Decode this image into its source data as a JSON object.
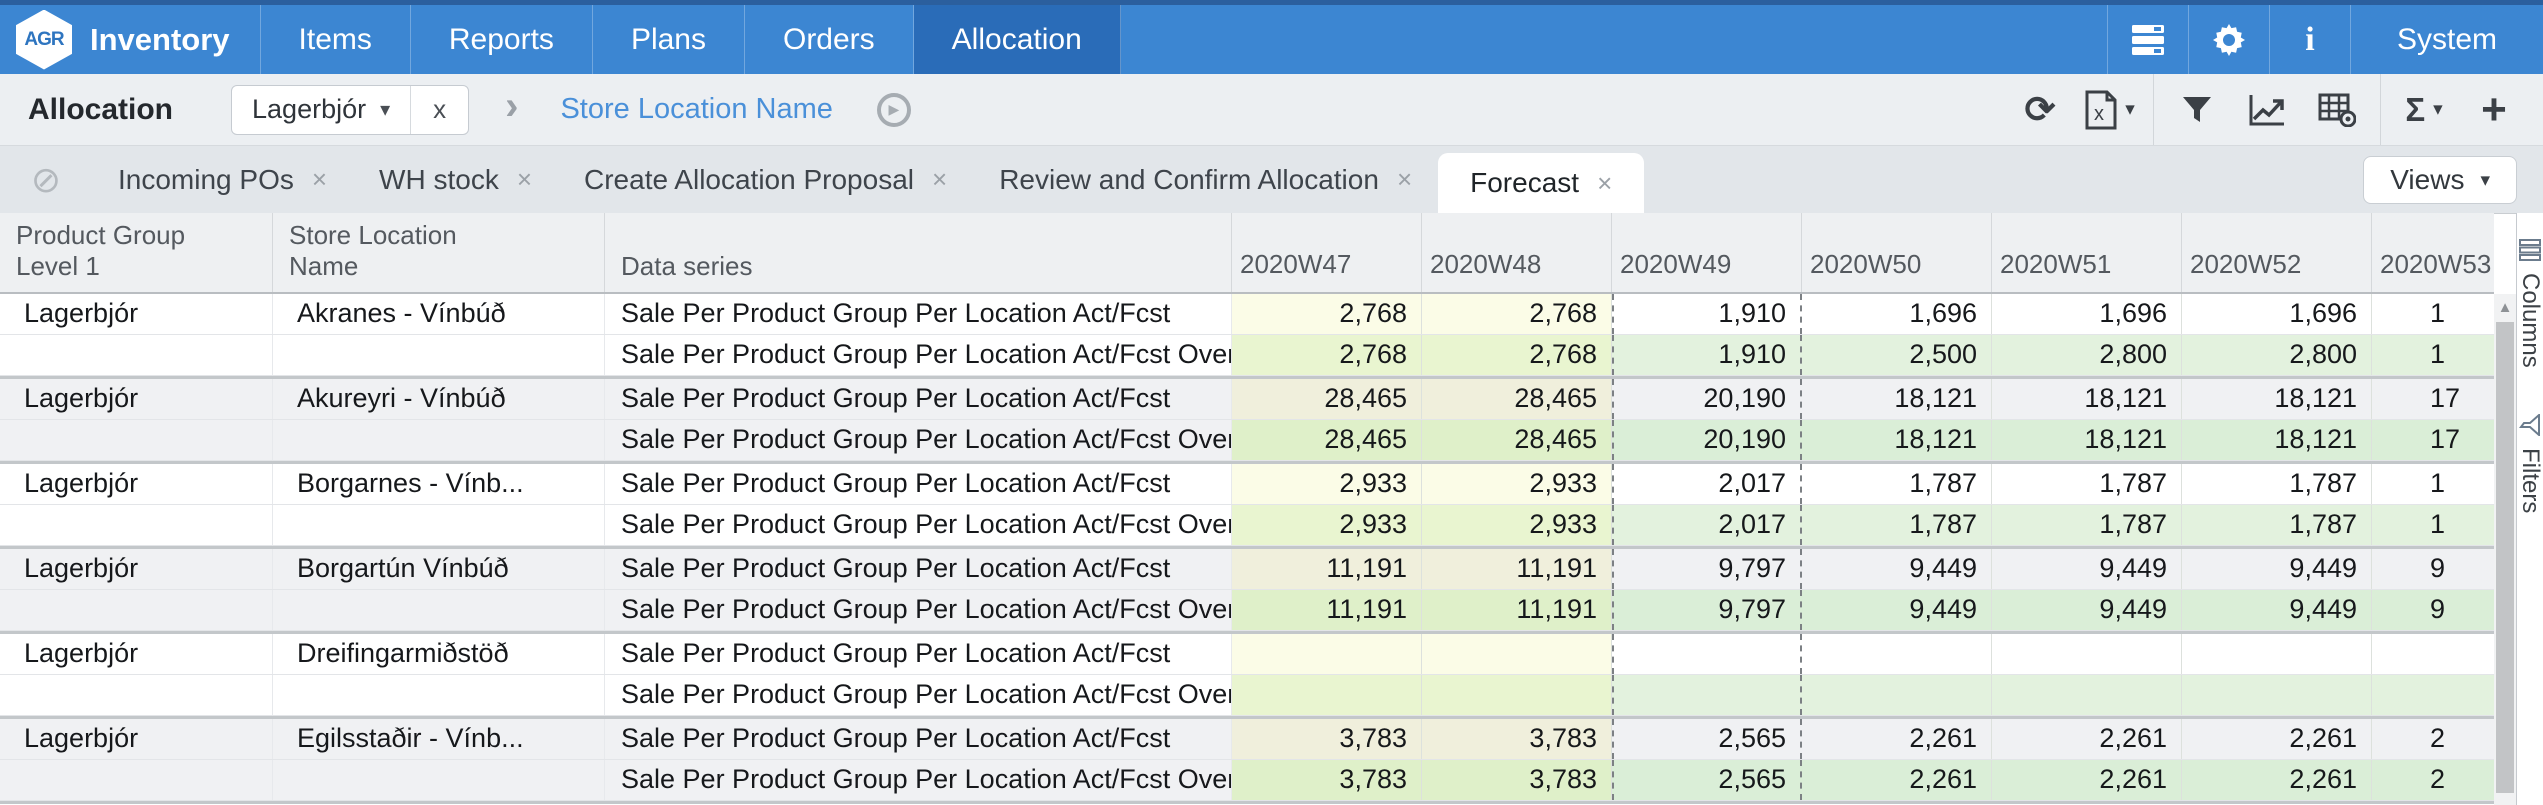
{
  "nav": {
    "logo_text": "AGR",
    "brand": "Inventory",
    "items": [
      {
        "label": "Items",
        "active": false
      },
      {
        "label": "Reports",
        "active": false
      },
      {
        "label": "Plans",
        "active": false
      },
      {
        "label": "Orders",
        "active": false
      },
      {
        "label": "Allocation",
        "active": true
      }
    ],
    "system_label": "System",
    "icons": [
      "database-icon",
      "gear-icon",
      "info-icon"
    ]
  },
  "toolbar": {
    "title": "Allocation",
    "filter_chip": {
      "label": "Lagerbjór",
      "caret": "▾",
      "close": "x"
    },
    "breadcrumb_separator": "›",
    "breadcrumb": "Store Location Name",
    "play_glyph": "▶",
    "refresh_glyph": "⟳",
    "sigma_glyph": "Σ",
    "plus_glyph": "+",
    "caret_glyph": "▾",
    "icons": [
      "refresh-icon",
      "excel-export-icon",
      "filter-icon",
      "chart-icon",
      "table-settings-icon",
      "sum-icon",
      "add-icon"
    ]
  },
  "tabs": {
    "block_glyph": "⊘",
    "close_glyph": "×",
    "items": [
      {
        "label": "Incoming POs",
        "active": false
      },
      {
        "label": "WH stock",
        "active": false
      },
      {
        "label": "Create Allocation Proposal",
        "active": false
      },
      {
        "label": "Review and Confirm Allocation",
        "active": false
      },
      {
        "label": "Forecast",
        "active": true
      }
    ],
    "views_label": "Views",
    "views_caret": "▾"
  },
  "side_rail": {
    "columns_label": "Columns",
    "filters_label": "Filters",
    "icons": [
      "columns-icon",
      "filter-icon"
    ]
  },
  "scrollbar": {
    "up_arrow": "▲"
  },
  "colors": {
    "nav_blue": "#3c86d2",
    "nav_active_blue": "#2a6cb8",
    "breadcrumb_blue": "#4a90d9",
    "actual_yellow": "#fbfce7",
    "overwrite_past_green": "#e9f5d0",
    "overwrite_future_green": "#e3f2de",
    "alt_row_gray": "#f0f1f3"
  },
  "table": {
    "headers": {
      "product": "Product Group Level 1",
      "location": "Store Location Name",
      "series": "Data series"
    },
    "week_columns": [
      "2020W47",
      "2020W48",
      "2020W49",
      "2020W50",
      "2020W51",
      "2020W52",
      "2020W53"
    ],
    "current_week_index": 2,
    "series_names": {
      "actual": "Sale Per Product Group Per Location Act/Fcst",
      "overwrite": "Sale Per Product Group Per Location Act/Fcst Overwrite"
    },
    "groups": [
      {
        "product": "Lagerbjór",
        "location": "Akranes - Vínbúð",
        "rows": [
          {
            "series": "Sale Per Product Group Per Location Act/Fcst",
            "values": [
              "2,768",
              "2,768",
              "1,910",
              "1,696",
              "1,696",
              "1,696",
              "1"
            ]
          },
          {
            "series": "Sale Per Product Group Per Location Act/Fcst Overwrite",
            "values": [
              "2,768",
              "2,768",
              "1,910",
              "2,500",
              "2,800",
              "2,800",
              "1"
            ]
          }
        ]
      },
      {
        "product": "Lagerbjór",
        "location": "Akureyri - Vínbúð",
        "rows": [
          {
            "series": "Sale Per Product Group Per Location Act/Fcst",
            "values": [
              "28,465",
              "28,465",
              "20,190",
              "18,121",
              "18,121",
              "18,121",
              "17"
            ]
          },
          {
            "series": "Sale Per Product Group Per Location Act/Fcst Overwrite",
            "values": [
              "28,465",
              "28,465",
              "20,190",
              "18,121",
              "18,121",
              "18,121",
              "17"
            ]
          }
        ]
      },
      {
        "product": "Lagerbjór",
        "location": "Borgarnes - Vínb...",
        "rows": [
          {
            "series": "Sale Per Product Group Per Location Act/Fcst",
            "values": [
              "2,933",
              "2,933",
              "2,017",
              "1,787",
              "1,787",
              "1,787",
              "1"
            ]
          },
          {
            "series": "Sale Per Product Group Per Location Act/Fcst Overwrite",
            "values": [
              "2,933",
              "2,933",
              "2,017",
              "1,787",
              "1,787",
              "1,787",
              "1"
            ]
          }
        ]
      },
      {
        "product": "Lagerbjór",
        "location": "Borgartún Vínbúð",
        "rows": [
          {
            "series": "Sale Per Product Group Per Location Act/Fcst",
            "values": [
              "11,191",
              "11,191",
              "9,797",
              "9,449",
              "9,449",
              "9,449",
              "9"
            ]
          },
          {
            "series": "Sale Per Product Group Per Location Act/Fcst Overwrite",
            "values": [
              "11,191",
              "11,191",
              "9,797",
              "9,449",
              "9,449",
              "9,449",
              "9"
            ]
          }
        ]
      },
      {
        "product": "Lagerbjór",
        "location": "Dreifingarmiðstöð",
        "rows": [
          {
            "series": "Sale Per Product Group Per Location Act/Fcst",
            "values": [
              "",
              "",
              "",
              "",
              "",
              "",
              ""
            ]
          },
          {
            "series": "Sale Per Product Group Per Location Act/Fcst Overwrite",
            "values": [
              "",
              "",
              "",
              "",
              "",
              "",
              ""
            ]
          }
        ]
      },
      {
        "product": "Lagerbjór",
        "location": "Egilsstaðir - Vínb...",
        "rows": [
          {
            "series": "Sale Per Product Group Per Location Act/Fcst",
            "values": [
              "3,783",
              "3,783",
              "2,565",
              "2,261",
              "2,261",
              "2,261",
              "2"
            ]
          },
          {
            "series": "Sale Per Product Group Per Location Act/Fcst Overwrite",
            "values": [
              "3,783",
              "3,783",
              "2,565",
              "2,261",
              "2,261",
              "2,261",
              "2"
            ]
          }
        ]
      }
    ]
  }
}
